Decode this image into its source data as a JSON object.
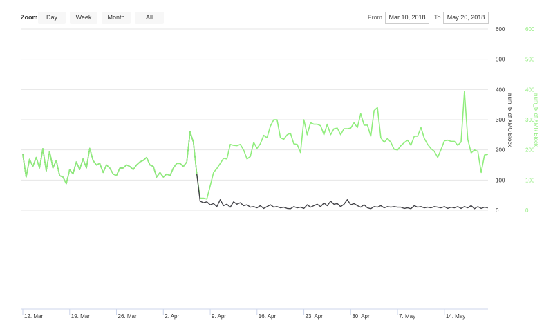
{
  "toolbar": {
    "zoom_label": "Zoom",
    "buttons": [
      "Day",
      "Week",
      "Month",
      "All"
    ],
    "from_label": "From",
    "from_value": "Mar 10, 2018",
    "to_label": "To",
    "to_value": "May 20, 2018"
  },
  "chart_data": {
    "type": "line",
    "ylim": [
      0,
      600
    ],
    "yticks": [
      0,
      100,
      200,
      300,
      400,
      500,
      600
    ],
    "grid": true,
    "xtick_labels": [
      "12. Mar",
      "19. Mar",
      "26. Mar",
      "2. Apr",
      "9. Apr",
      "16. Apr",
      "23. Apr",
      "30. Apr",
      "7. May",
      "14. May"
    ],
    "xtick_dates": [
      "2018-03-12",
      "2018-03-19",
      "2018-03-26",
      "2018-04-02",
      "2018-04-09",
      "2018-04-16",
      "2018-04-23",
      "2018-04-30",
      "2018-05-07",
      "2018-05-14"
    ],
    "axis_left_title": "num_tx of XMO Block",
    "axis_right_title": "num_tx of XMR Block",
    "colors": {
      "xmo": "#434348",
      "xmr": "#90ed7d"
    },
    "x_start": "2018-03-12 00:00",
    "x_step_hours": 12,
    "series": [
      {
        "key": "xmo",
        "values": [
          185,
          110,
          169,
          145,
          175,
          140,
          204,
          130,
          195,
          140,
          165,
          115,
          110,
          88,
          135,
          120,
          160,
          135,
          170,
          140,
          205,
          165,
          150,
          155,
          125,
          150,
          140,
          120,
          115,
          140,
          140,
          150,
          145,
          135,
          150,
          160,
          165,
          175,
          150,
          145,
          110,
          125,
          110,
          120,
          115,
          140,
          155,
          155,
          145,
          160,
          260,
          225,
          120,
          30,
          25,
          28,
          18,
          22,
          12,
          35,
          15,
          20,
          10,
          28,
          20,
          25,
          15,
          18,
          10,
          12,
          8,
          15,
          6,
          12,
          18,
          10,
          12,
          8,
          10,
          6,
          5,
          12,
          8,
          10,
          6,
          18,
          10,
          15,
          20,
          12,
          24,
          15,
          30,
          20,
          22,
          12,
          20,
          35,
          18,
          22,
          15,
          10,
          18,
          8,
          5,
          12,
          10,
          15,
          8,
          12,
          10,
          12,
          10,
          10,
          6,
          8,
          5,
          15,
          10,
          12,
          8,
          10,
          8,
          12,
          10,
          8,
          12,
          6,
          10,
          8,
          12,
          6,
          12,
          8,
          15,
          5,
          12,
          6,
          10,
          8
        ]
      },
      {
        "key": "xmr",
        "values": [
          185,
          110,
          169,
          145,
          175,
          140,
          204,
          130,
          195,
          140,
          165,
          115,
          110,
          88,
          135,
          120,
          160,
          135,
          170,
          140,
          205,
          165,
          150,
          155,
          125,
          150,
          140,
          120,
          115,
          140,
          140,
          150,
          145,
          135,
          150,
          160,
          165,
          175,
          150,
          145,
          110,
          125,
          110,
          120,
          115,
          140,
          155,
          155,
          145,
          160,
          260,
          225,
          120,
          40,
          40,
          37,
          80,
          125,
          138,
          155,
          172,
          170,
          218,
          215,
          214,
          218,
          200,
          170,
          178,
          225,
          205,
          220,
          248,
          240,
          279,
          300,
          300,
          240,
          235,
          250,
          255,
          220,
          218,
          191,
          300,
          250,
          290,
          285,
          285,
          280,
          250,
          285,
          250,
          270,
          272,
          250,
          270,
          270,
          272,
          290,
          274,
          320,
          282,
          282,
          245,
          330,
          340,
          240,
          225,
          238,
          225,
          202,
          200,
          214,
          224,
          232,
          215,
          245,
          245,
          274,
          238,
          218,
          204,
          195,
          175,
          201,
          230,
          232,
          228,
          228,
          215,
          226,
          394,
          235,
          190,
          200,
          195,
          125,
          183,
          185
        ]
      }
    ]
  }
}
